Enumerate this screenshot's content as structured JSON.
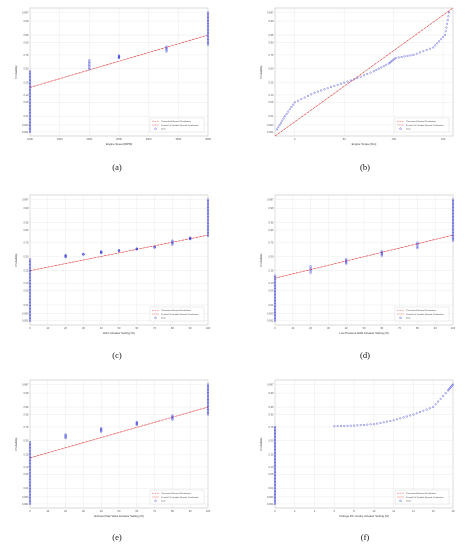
{
  "chart_data": [
    {
      "type": "scatter",
      "panel": "(a)",
      "xlabel": "Engine Speed [RPM]",
      "ylabel": "Probability",
      "x_ticks": [
        "1000",
        "1500",
        "2000",
        "2500",
        "3000",
        "3500",
        "4000"
      ],
      "xlim": [
        1000,
        4000
      ],
      "y_ticks": [
        "0.001",
        "0.003",
        "0.01",
        "0.05",
        "0.10",
        "0.25",
        "0.50",
        "0.75",
        "0.90",
        "0.95",
        "0.99",
        "0.997"
      ],
      "ylim": [
        0.0005,
        0.9985
      ],
      "scale": "normal-probability",
      "legend": {
        "entries": [
          {
            "label": "Theoretical Normal Distribution",
            "style": "dashed"
          },
          {
            "label": "Fit with Fit Variable Normal Distribution",
            "style": "solid"
          },
          {
            "label": "Data",
            "style": "marker"
          }
        ],
        "placement": "bottom-right"
      },
      "theoretical_line": [
        [
          1000,
          0.18
        ],
        [
          4000,
          0.95
        ]
      ],
      "fit_line": [
        [
          1000,
          0.18
        ],
        [
          4000,
          0.95
        ]
      ],
      "series": [
        {
          "type": "vertical-stack",
          "x": 1000,
          "p": [
            0.001,
            0.45
          ]
        },
        {
          "type": "vertical-stack",
          "x": 2000,
          "p": [
            0.49,
            0.66
          ]
        },
        {
          "type": "vertical-stack",
          "x": 2500,
          "p": [
            0.7,
            0.74
          ]
        },
        {
          "type": "vertical-stack",
          "x": 3300,
          "p": [
            0.8,
            0.86
          ]
        },
        {
          "type": "vertical-stack",
          "x": 4000,
          "p": [
            0.88,
            0.997
          ]
        }
      ]
    },
    {
      "type": "scatter",
      "panel": "(b)",
      "xlabel": "Engine Torque [Nm]",
      "ylabel": "Probability",
      "x_ticks": [
        "0",
        "50",
        "100",
        "150"
      ],
      "xlim": [
        -20,
        160
      ],
      "y_ticks": [
        "0.001",
        "0.003",
        "0.01",
        "0.05",
        "0.10",
        "0.25",
        "0.50",
        "0.75",
        "0.90",
        "0.95",
        "0.99",
        "0.997"
      ],
      "ylim": [
        0.0005,
        0.9985
      ],
      "scale": "normal-probability",
      "legend": {
        "entries": [
          {
            "label": "Theoretical Normal Distribution",
            "style": "dashed"
          },
          {
            "label": "Fit with Fit Variable Normal Distribution",
            "style": "solid"
          },
          {
            "label": "Data",
            "style": "marker"
          }
        ],
        "placement": "bottom-right"
      },
      "theoretical_line": [
        [
          -20,
          0.0005
        ],
        [
          160,
          0.9985
        ]
      ],
      "fit_line": [
        [
          -20,
          0.0005
        ],
        [
          160,
          0.9985
        ]
      ],
      "series": [
        {
          "type": "curve",
          "points": [
            [
              -18,
              0.0015
            ],
            [
              -10,
              0.01
            ],
            [
              0,
              0.05
            ],
            [
              20,
              0.12
            ],
            [
              40,
              0.2
            ],
            [
              60,
              0.3
            ],
            [
              80,
              0.45
            ],
            [
              95,
              0.6
            ],
            [
              102,
              0.7
            ],
            [
              120,
              0.75
            ],
            [
              140,
              0.85
            ],
            [
              152,
              0.95
            ],
            [
              156,
              0.997
            ]
          ]
        }
      ]
    },
    {
      "type": "scatter",
      "panel": "(c)",
      "xlabel": "EGC Actuator Setting [%]",
      "ylabel": "Probability",
      "x_ticks": [
        "0",
        "10",
        "20",
        "30",
        "40",
        "50",
        "60",
        "70",
        "80",
        "90",
        "100"
      ],
      "xlim": [
        0,
        100
      ],
      "y_ticks": [
        "0.001",
        "0.003",
        "0.01",
        "0.05",
        "0.10",
        "0.25",
        "0.50",
        "0.75",
        "0.90",
        "0.95",
        "0.99",
        "0.997"
      ],
      "ylim": [
        0.0005,
        0.9985
      ],
      "scale": "normal-probability",
      "legend": {
        "entries": [
          {
            "label": "Theoretical Normal Distribution",
            "style": "dashed"
          },
          {
            "label": "Fit with Fit Variable Normal Distribution",
            "style": "solid"
          },
          {
            "label": "Data",
            "style": "marker"
          }
        ],
        "placement": "bottom-right"
      },
      "theoretical_line": [
        [
          0,
          0.25
        ],
        [
          100,
          0.85
        ]
      ],
      "fit_line": [
        [
          0,
          0.25
        ],
        [
          100,
          0.85
        ]
      ],
      "series": [
        {
          "type": "vertical-stack",
          "x": 0,
          "p": [
            0.001,
            0.45
          ]
        },
        {
          "type": "vertical-stack",
          "x": 20,
          "p": [
            0.49,
            0.53
          ]
        },
        {
          "type": "vertical-stack",
          "x": 30,
          "p": [
            0.54,
            0.55
          ]
        },
        {
          "type": "vertical-stack",
          "x": 40,
          "p": [
            0.57,
            0.6
          ]
        },
        {
          "type": "vertical-stack",
          "x": 50,
          "p": [
            0.61,
            0.62
          ]
        },
        {
          "type": "vertical-stack",
          "x": 60,
          "p": [
            0.64,
            0.65
          ]
        },
        {
          "type": "vertical-stack",
          "x": 70,
          "p": [
            0.67,
            0.68
          ]
        },
        {
          "type": "vertical-stack",
          "x": 80,
          "p": [
            0.72,
            0.78
          ]
        },
        {
          "type": "vertical-stack",
          "x": 90,
          "p": [
            0.8,
            0.82
          ]
        },
        {
          "type": "vertical-stack",
          "x": 100,
          "p": [
            0.84,
            0.997
          ]
        }
      ]
    },
    {
      "type": "scatter",
      "panel": "(d)",
      "xlabel": "Low Pressure EGR Actuator Setting [%]",
      "ylabel": "Probability",
      "x_ticks": [
        "0",
        "10",
        "20",
        "30",
        "40",
        "50",
        "60",
        "70",
        "80",
        "90",
        "100"
      ],
      "xlim": [
        0,
        100
      ],
      "y_ticks": [
        "0.001",
        "0.003",
        "0.01",
        "0.05",
        "0.10",
        "0.25",
        "0.50",
        "0.75",
        "0.90",
        "0.95",
        "0.99",
        "0.997"
      ],
      "ylim": [
        0.0005,
        0.9985
      ],
      "scale": "normal-probability",
      "legend": {
        "entries": [
          {
            "label": "Theoretical Normal Distribution",
            "style": "dashed"
          },
          {
            "label": "Fit with Fit Variable Normal Distribution",
            "style": "solid"
          },
          {
            "label": "Data",
            "style": "marker"
          }
        ],
        "placement": "bottom-right"
      },
      "theoretical_line": [
        [
          0,
          0.15
        ],
        [
          100,
          0.85
        ]
      ],
      "fit_line": [
        [
          0,
          0.15
        ],
        [
          100,
          0.85
        ]
      ],
      "series": [
        {
          "type": "vertical-stack",
          "x": 0,
          "p": [
            0.001,
            0.18
          ]
        },
        {
          "type": "vertical-stack",
          "x": 20,
          "p": [
            0.22,
            0.32
          ]
        },
        {
          "type": "vertical-stack",
          "x": 40,
          "p": [
            0.37,
            0.45
          ]
        },
        {
          "type": "vertical-stack",
          "x": 60,
          "p": [
            0.52,
            0.6
          ]
        },
        {
          "type": "vertical-stack",
          "x": 80,
          "p": [
            0.66,
            0.75
          ]
        },
        {
          "type": "vertical-stack",
          "x": 100,
          "p": [
            0.78,
            0.997
          ]
        }
      ]
    },
    {
      "type": "scatter",
      "panel": "(e)",
      "xlabel": "Exhaust Flap Valve Actuator Setting [%]",
      "ylabel": "Probability",
      "x_ticks": [
        "0",
        "10",
        "20",
        "30",
        "40",
        "50",
        "60",
        "70",
        "80",
        "90",
        "100"
      ],
      "xlim": [
        0,
        100
      ],
      "y_ticks": [
        "0.001",
        "0.003",
        "0.01",
        "0.05",
        "0.10",
        "0.25",
        "0.50",
        "0.75",
        "0.90",
        "0.95",
        "0.99",
        "0.997"
      ],
      "ylim": [
        0.0005,
        0.9985
      ],
      "scale": "normal-probability",
      "legend": {
        "entries": [
          {
            "label": "Theoretical Normal Distribution",
            "style": "dashed"
          },
          {
            "label": "Fit with Fit Variable Normal Distribution",
            "style": "solid"
          },
          {
            "label": "Data",
            "style": "marker"
          }
        ],
        "placement": "bottom-right"
      },
      "theoretical_line": [
        [
          0,
          0.2
        ],
        [
          100,
          0.95
        ]
      ],
      "fit_line": [
        [
          0,
          0.2
        ],
        [
          100,
          0.95
        ]
      ],
      "series": [
        {
          "type": "vertical-stack",
          "x": 0,
          "p": [
            0.001,
            0.47
          ]
        },
        {
          "type": "vertical-stack",
          "x": 20,
          "p": [
            0.55,
            0.62
          ]
        },
        {
          "type": "vertical-stack",
          "x": 40,
          "p": [
            0.67,
            0.73
          ]
        },
        {
          "type": "vertical-stack",
          "x": 60,
          "p": [
            0.78,
            0.82
          ]
        },
        {
          "type": "vertical-stack",
          "x": 80,
          "p": [
            0.85,
            0.89
          ]
        },
        {
          "type": "vertical-stack",
          "x": 100,
          "p": [
            0.9,
            0.997
          ]
        }
      ]
    },
    {
      "type": "scatter",
      "panel": "(f)",
      "xlabel": "Change DC Crosby Actuator Setting [%]",
      "ylabel": "Probability",
      "x_ticks": [
        "0",
        "2",
        "4",
        "6",
        "8",
        "10",
        "12",
        "14",
        "16",
        "18"
      ],
      "xlim": [
        0,
        18
      ],
      "y_ticks": [
        "0.001",
        "0.003",
        "0.01",
        "0.05",
        "0.10",
        "0.25",
        "0.50",
        "0.75",
        "0.90",
        "0.95",
        "0.99",
        "0.997"
      ],
      "ylim": [
        0.0005,
        0.9985
      ],
      "scale": "normal-probability",
      "legend": {
        "entries": [
          {
            "label": "Theoretical Normal Distribution",
            "style": "dashed"
          },
          {
            "label": "Fit with Fit Variable Normal Distribution",
            "style": "solid"
          },
          {
            "label": "Data",
            "style": "marker"
          }
        ],
        "placement": "bottom-right"
      },
      "theoretical_line": null,
      "fit_line": null,
      "series": [
        {
          "type": "vertical-stack",
          "x": 0,
          "p": [
            0.001,
            0.75
          ]
        },
        {
          "type": "curve",
          "points": [
            [
              6,
              0.76
            ],
            [
              8,
              0.77
            ],
            [
              10,
              0.79
            ],
            [
              12,
              0.84
            ],
            [
              14,
              0.9
            ],
            [
              16,
              0.95
            ],
            [
              17.5,
              0.993
            ],
            [
              18,
              0.997
            ]
          ]
        }
      ]
    }
  ]
}
